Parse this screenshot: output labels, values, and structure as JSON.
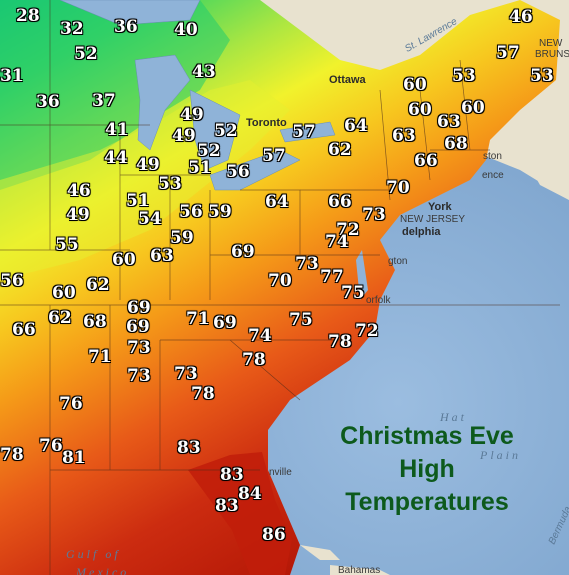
{
  "title_lines": [
    "Christmas Eve",
    "High",
    "Temperatures"
  ],
  "temperature_labels": [
    "28",
    "32",
    "36",
    "40",
    "46",
    "31",
    "52",
    "43",
    "53",
    "57",
    "53",
    "36",
    "37",
    "60",
    "60",
    "49",
    "57",
    "64",
    "63",
    "60",
    "63",
    "41",
    "49",
    "52",
    "52",
    "66",
    "68",
    "44",
    "49",
    "51",
    "56",
    "57",
    "62",
    "53",
    "70",
    "46",
    "51",
    "64",
    "66",
    "73",
    "49",
    "54",
    "56",
    "59",
    "72",
    "74",
    "55",
    "59",
    "63",
    "69",
    "60",
    "73",
    "77",
    "56",
    "62",
    "70",
    "75",
    "60",
    "69",
    "71",
    "69",
    "75",
    "72",
    "62",
    "68",
    "69",
    "74",
    "78",
    "66",
    "73",
    "78",
    "71",
    "73",
    "73",
    "76",
    "78",
    "78",
    "76",
    "81",
    "83",
    "83",
    "84",
    "83",
    "86"
  ],
  "place_labels": {
    "ottawa": "Ottawa",
    "toronto": "Toronto",
    "york": "York",
    "new_jersey": "NEW JERSEY",
    "philadelphia": "delphia",
    "boston": "ston",
    "providence": "ence",
    "new_brunswick": "NEW",
    "brunswick2": "BRUNSV",
    "norfolk": "orfolk",
    "gton": "gton",
    "jacksonville": "nville",
    "bahamas": "Bahamas",
    "lawrence": "St. Lawrence",
    "bermuda": "Bermuda"
  },
  "sea_labels": {
    "gulf": "Gulf  of",
    "mexico": "Mexico",
    "plain": "Plain",
    "hat": "Hat"
  },
  "legend_colors": {
    "cold": "#1bd36a",
    "cool": "#7fe05a",
    "mild": "#f2f32a",
    "warm": "#f5a018",
    "hot": "#e0471c",
    "hottest": "#b81808",
    "ocean": "#8fb3d8",
    "title_green": "#0d5a1c"
  }
}
